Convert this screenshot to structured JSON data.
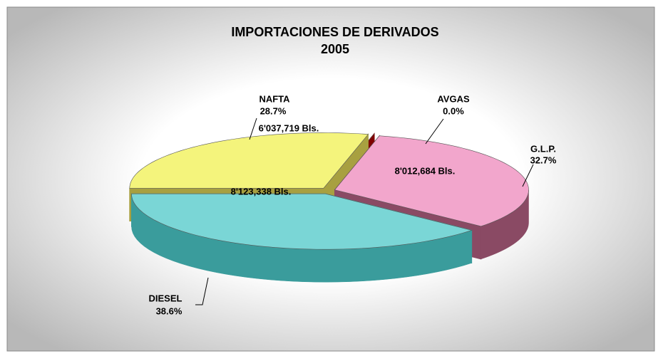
{
  "chart_data": {
    "type": "pie",
    "title": "IMPORTACIONES DE DERIVADOS",
    "subtitle": "2005",
    "categories": [
      "NAFTA",
      "AVGAS",
      "G.L.P.",
      "DIESEL"
    ],
    "values": [
      28.7,
      0.0,
      32.7,
      38.6
    ],
    "value_labels": [
      "28.7%",
      "0.0%",
      "32.7%",
      "38.6%"
    ],
    "volumes": [
      6037719,
      null,
      8012684,
      8123338
    ],
    "volume_labels": [
      "6'037,719 Bls.",
      null,
      "8'012,684 Bls.",
      "8'123,338 Bls."
    ],
    "colors": [
      "#f4f47c",
      "#d01010",
      "#f2a6cc",
      "#7ad6d6"
    ],
    "side_colors": [
      "#a8a040",
      "#800000",
      "#8a4a64",
      "#3a9c9c"
    ]
  }
}
